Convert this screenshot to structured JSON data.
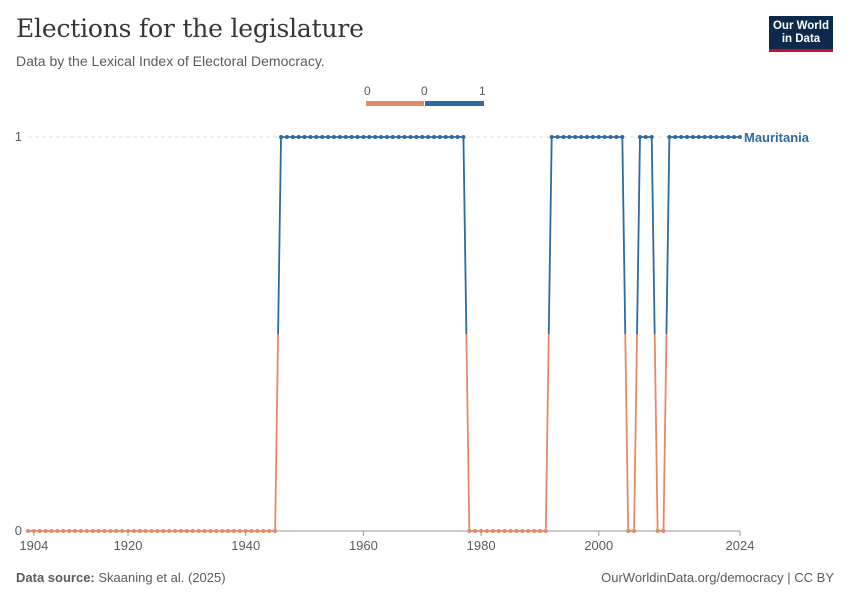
{
  "header": {
    "title": "Elections for the legislature",
    "subtitle": "Data by the Lexical Index of Electoral Democracy."
  },
  "logo": {
    "line1": "Our World",
    "line2": "in Data"
  },
  "legend": {
    "labels": [
      "0",
      "0",
      "1"
    ]
  },
  "footer": {
    "source_label": "Data source:",
    "source_text": "Skaaning et al. (2025)",
    "link": "OurWorldinData.org/democracy | CC BY"
  },
  "colors": {
    "low": "#e58a68",
    "high": "#2d6b9f",
    "grid": "#dddddd",
    "axis": "#999999"
  },
  "chart_data": {
    "type": "line",
    "title": "Elections for the legislature",
    "subtitle": "Data by the Lexical Index of Electoral Democracy.",
    "xlim": [
      1903,
      2024
    ],
    "ylim": [
      0,
      1
    ],
    "x_ticks": [
      "1904",
      "1920",
      "1940",
      "1960",
      "1980",
      "2000",
      "2024"
    ],
    "y_ticks": [
      "0",
      "1"
    ],
    "grid": true,
    "series": [
      {
        "name": "Mauritania",
        "segments": [
          {
            "from": 1903,
            "to": 1945,
            "value": 0
          },
          {
            "from": 1946,
            "to": 1977,
            "value": 1
          },
          {
            "from": 1978,
            "to": 1991,
            "value": 0
          },
          {
            "from": 1992,
            "to": 2004,
            "value": 1
          },
          {
            "from": 2005,
            "to": 2006,
            "value": 0
          },
          {
            "from": 2007,
            "to": 2009,
            "value": 1
          },
          {
            "from": 2010,
            "to": 2011,
            "value": 0
          },
          {
            "from": 2012,
            "to": 2024,
            "value": 1
          }
        ]
      }
    ]
  }
}
